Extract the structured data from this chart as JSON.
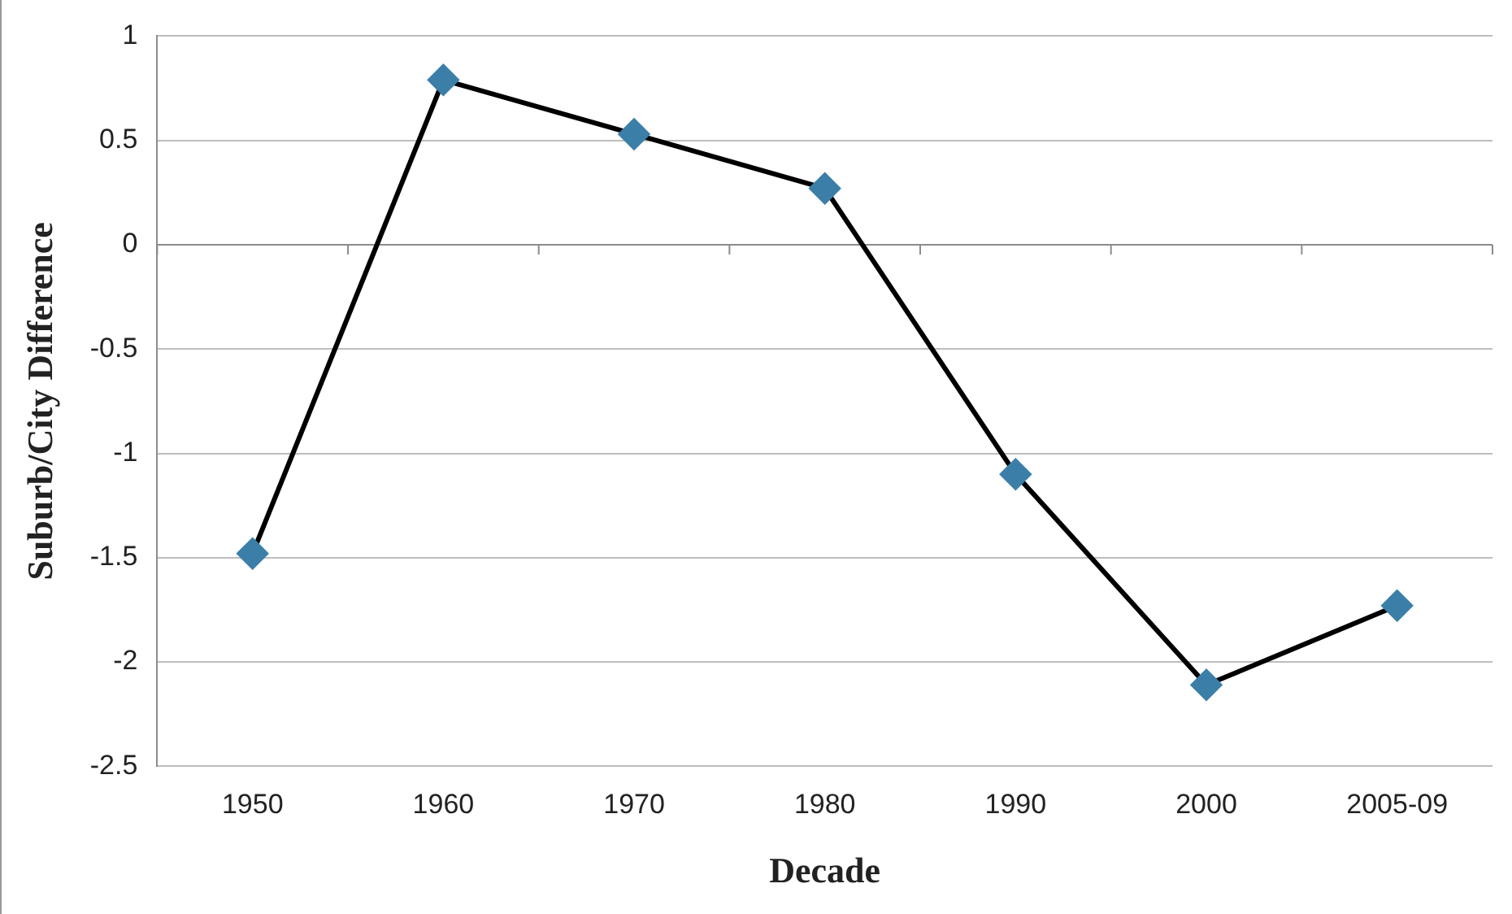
{
  "chart_data": {
    "type": "line",
    "xlabel": "Decade",
    "ylabel": "Suburb/City Difference",
    "categories": [
      "1950",
      "1960",
      "1970",
      "1980",
      "1990",
      "2000",
      "2005-09"
    ],
    "series": [
      {
        "color": "#000000",
        "colors": [
          "#3b7fa8",
          "#3b7fa8",
          "#3b7fa8",
          "#3b7fa8",
          "#3b7fa8",
          "#3b7fa8",
          "#3b7fa8"
        ],
        "values": [
          -1.48,
          0.79,
          0.53,
          0.27,
          -1.1,
          -2.11,
          -1.73
        ]
      }
    ],
    "ylim": [
      -2.5,
      1
    ],
    "yticks": [
      -2.5,
      -2,
      -1.5,
      -1,
      -0.5,
      0,
      0.5,
      1
    ],
    "grid": "y",
    "marker": "diamond",
    "line_style": "solid",
    "legend": false
  }
}
